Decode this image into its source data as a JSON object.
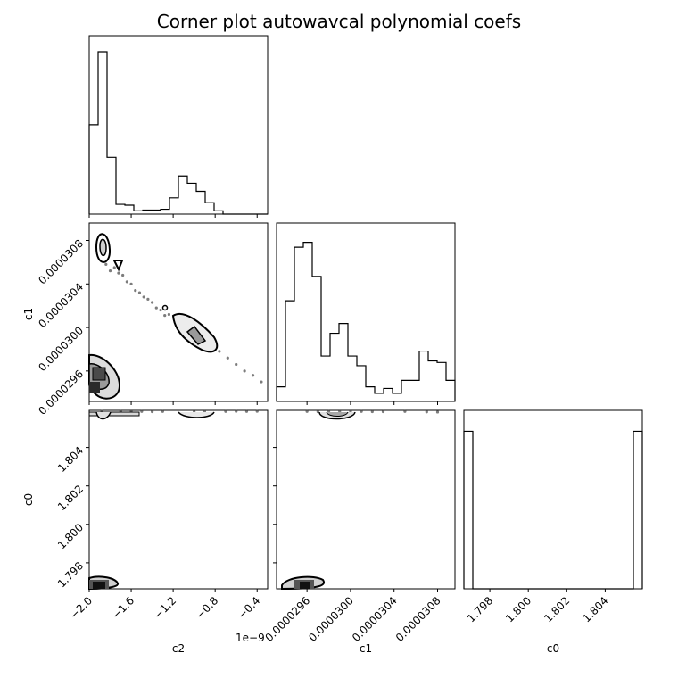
{
  "title": "Corner plot autowavcal polynomial coefs",
  "chart_data": {
    "type": "corner",
    "title": "Corner plot autowavcal polynomial coefs",
    "parameters": [
      "c2",
      "c1",
      "c0"
    ],
    "axes": {
      "c2": {
        "label": "c2",
        "range": [
          -2e-09,
          -3e-10
        ],
        "ticks": [
          -2e-09,
          -1.6e-09,
          -1.2e-09,
          -8e-10,
          -4e-10
        ],
        "tick_labels": [
          "−2.0",
          "−1.6",
          "−1.2",
          "−0.8",
          "−0.4"
        ],
        "offset_label": "1e−9"
      },
      "c1": {
        "label": "c1",
        "range": [
          2.932e-05,
          3.096e-05
        ],
        "ticks": [
          2.96e-05,
          3e-05,
          3.04e-05,
          3.08e-05
        ],
        "tick_labels": [
          "0.0000296",
          "0.0000300",
          "0.0000304",
          "0.0000308"
        ]
      },
      "c0": {
        "label": "c0",
        "range": [
          1.79665,
          1.80593
        ],
        "ticks": [
          1.798,
          1.8,
          1.802,
          1.804
        ],
        "tick_labels": [
          "1.798",
          "1.800",
          "1.802",
          "1.804"
        ]
      }
    },
    "histograms": {
      "c2": [
        0.55,
        1.0,
        0.35,
        0.06,
        0.055,
        0.02,
        0.025,
        0.025,
        0.03,
        0.1,
        0.235,
        0.19,
        0.14,
        0.07,
        0.02,
        0.0,
        0.0,
        0.0,
        0.0,
        0.0
      ],
      "c1": [
        0.09,
        0.62,
        0.95,
        0.98,
        0.77,
        0.28,
        0.42,
        0.48,
        0.28,
        0.22,
        0.09,
        0.05,
        0.08,
        0.05,
        0.13,
        0.13,
        0.31,
        0.25,
        0.24,
        0.13
      ],
      "c0": [
        0.97,
        0.0,
        0.0,
        0.0,
        0.0,
        0.0,
        0.0,
        0.0,
        0.0,
        0.0,
        0.0,
        0.0,
        0.0,
        0.0,
        0.0,
        0.0,
        0.0,
        0.0,
        0.0,
        0.97
      ]
    },
    "scatter": {
      "c2_vs_c1": [
        [
          -1.84e-09,
          3.058e-05
        ],
        [
          -1.8e-09,
          3.052e-05
        ],
        [
          -1.76e-09,
          3.055e-05
        ],
        [
          -1.72e-09,
          3.05e-05
        ],
        [
          -1.68e-09,
          3.048e-05
        ],
        [
          -1.64e-09,
          3.042e-05
        ],
        [
          -1.6e-09,
          3.04e-05
        ],
        [
          -1.56e-09,
          3.034e-05
        ],
        [
          -1.52e-09,
          3.032e-05
        ],
        [
          -1.48e-09,
          3.028e-05
        ],
        [
          -1.44e-09,
          3.026e-05
        ],
        [
          -1.4e-09,
          3.023e-05
        ],
        [
          -1.36e-09,
          3.018e-05
        ],
        [
          -1.32e-09,
          3.016e-05
        ],
        [
          -1.28e-09,
          3.011e-05
        ],
        [
          -1.24e-09,
          3.012e-05
        ],
        [
          -1.16e-09,
          3.006e-05
        ],
        [
          -1.08e-09,
          2.998e-05
        ],
        [
          -1e-09,
          2.993e-05
        ],
        [
          -9.2e-10,
          2.988e-05
        ],
        [
          -8.4e-10,
          2.982e-05
        ],
        [
          -7.6e-10,
          2.978e-05
        ],
        [
          -6.8e-10,
          2.972e-05
        ],
        [
          -6e-10,
          2.966e-05
        ],
        [
          -5.2e-10,
          2.96e-05
        ],
        [
          -4.4e-10,
          2.956e-05
        ],
        [
          -3.6e-10,
          2.95e-05
        ]
      ],
      "c2_vs_c0": [
        [
          -1.88e-09,
          1.80588
        ],
        [
          -1.7e-09,
          1.80587
        ],
        [
          -1.6e-09,
          1.80586
        ],
        [
          -1.5e-09,
          1.80587
        ],
        [
          -1.4e-09,
          1.80586
        ],
        [
          -1.3e-09,
          1.80587
        ],
        [
          -1e-09,
          1.80585
        ],
        [
          -9e-10,
          1.80586
        ],
        [
          -7e-10,
          1.80587
        ],
        [
          -6e-10,
          1.80588
        ],
        [
          -5e-10,
          1.80587
        ],
        [
          -4e-10,
          1.80588
        ]
      ],
      "c1_vs_c0": [
        [
          2.96e-05,
          1.80587
        ],
        [
          2.97e-05,
          1.80586
        ],
        [
          2.98e-05,
          1.80587
        ],
        [
          2.99e-05,
          1.80586
        ],
        [
          3e-05,
          1.80586
        ],
        [
          3.01e-05,
          1.80587
        ],
        [
          3.02e-05,
          1.80586
        ],
        [
          3.03e-05,
          1.80586
        ],
        [
          3.05e-05,
          1.80587
        ],
        [
          3.07e-05,
          1.80585
        ],
        [
          3.08e-05,
          1.80584
        ]
      ]
    },
    "grid": false,
    "legend": "none"
  }
}
